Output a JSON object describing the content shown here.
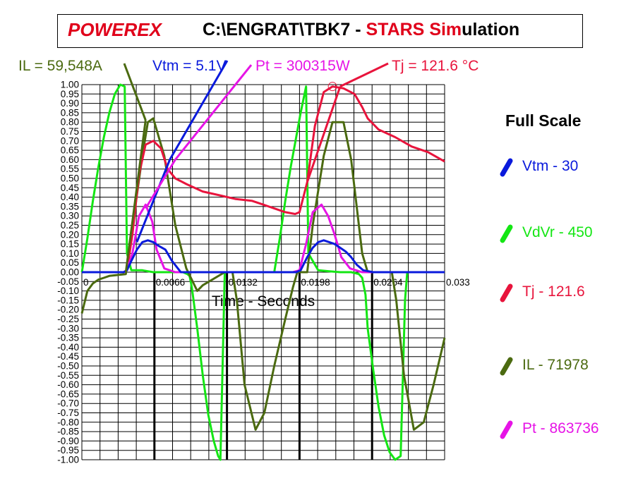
{
  "title": {
    "brand": "POWEREX",
    "path": "C:\\ENGRAT\\TBK7 - ",
    "sim_red1": "STARS",
    "sim_space": " ",
    "sim_red2": "Sim",
    "sim_black": "ulation"
  },
  "readouts": [
    {
      "text": "IL = 59,548A",
      "color": "#4b6a10"
    },
    {
      "text": "Vtm  = 5.1V",
      "color": "#0a1adc"
    },
    {
      "text": "Pt  = 300315W",
      "color": "#e614e6"
    },
    {
      "text": "Tj  = 121.6 °C",
      "color": "#e8143c"
    }
  ],
  "full_scale": {
    "heading": "Full Scale",
    "items": [
      {
        "label": "Vtm  - 30",
        "color": "#0a1adc"
      },
      {
        "label": "VdVr - 450",
        "color": "#14e614"
      },
      {
        "label": "Tj  - 121.6",
        "color": "#e8143c"
      },
      {
        "label": "IL  - 71978",
        "color": "#4b6a10"
      },
      {
        "label": "Pt  - 863736",
        "color": "#e614e6"
      }
    ]
  },
  "chart_data": {
    "type": "line",
    "xlabel": "Time - Seconds",
    "ylabel": "",
    "xlim": [
      0,
      0.033
    ],
    "ylim": [
      -1.0,
      1.0
    ],
    "x_tick_labels": [
      "0",
      "0.0066",
      "0.0132",
      "0.0198",
      "0.0264",
      "0.033"
    ],
    "x_tick_values": [
      0,
      0.0066,
      0.0132,
      0.0198,
      0.0264,
      0.033
    ],
    "y_tick_labels": [
      "1.00",
      "0.95",
      "0.90",
      "0.85",
      "0.80",
      "0.75",
      "0.70",
      "0.65",
      "0.60",
      "0.55",
      "0.50",
      "0.45",
      "0.40",
      "0.35",
      "0.30",
      "0.25",
      "0.20",
      "0.15",
      "0.10",
      "0.05",
      "0.00",
      "-0.05",
      "-0.10",
      "-0.15",
      "-0.20",
      "-0.25",
      "-0.30",
      "-0.35",
      "-0.40",
      "-0.45",
      "-0.50",
      "-0.55",
      "-0.60",
      "-0.65",
      "-0.70",
      "-0.75",
      "-0.80",
      "-0.85",
      "-0.90",
      "-0.95",
      "-1.00"
    ],
    "grid": true,
    "series": [
      {
        "name": "VdVr",
        "color": "#14e614",
        "x": [
          0,
          0.0005,
          0.001,
          0.0015,
          0.002,
          0.0025,
          0.003,
          0.0035,
          0.0039,
          0.0041,
          0.0045,
          0.005,
          0.0055,
          0.006,
          0.0065,
          0.007,
          0.0075,
          0.0085,
          0.0092,
          0.0096,
          0.0098,
          0.01,
          0.0105,
          0.011,
          0.0115,
          0.012,
          0.0124,
          0.0126,
          0.013,
          0.0136,
          0.0145,
          0.0155,
          0.0165,
          0.0175,
          0.018,
          0.0185,
          0.019,
          0.0195,
          0.0199,
          0.0204,
          0.0206,
          0.0215,
          0.0225,
          0.0235,
          0.0245,
          0.0252,
          0.0255,
          0.0258,
          0.026,
          0.0265,
          0.027,
          0.0275,
          0.028,
          0.0285,
          0.029,
          0.0294,
          0.0296,
          0.0305,
          0.033
        ],
        "y": [
          0,
          0.18,
          0.38,
          0.56,
          0.72,
          0.85,
          0.95,
          1.0,
          0.99,
          0.1,
          0.01,
          0.01,
          0.01,
          0.005,
          0.0,
          0.0,
          0.0,
          0.0,
          0.0,
          -0.01,
          -0.02,
          -0.08,
          -0.3,
          -0.55,
          -0.76,
          -0.9,
          -0.98,
          -1.0,
          0.0,
          0.0,
          0.0,
          0.0,
          0.0,
          0.0,
          0.18,
          0.38,
          0.56,
          0.72,
          0.85,
          0.99,
          0.1,
          0.01,
          0.005,
          0.0,
          0.0,
          -0.01,
          -0.03,
          -0.12,
          -0.3,
          -0.52,
          -0.72,
          -0.87,
          -0.96,
          -1.0,
          -0.98,
          -0.15,
          0.0,
          0.0,
          0.0
        ]
      },
      {
        "name": "IL",
        "color": "#4b6a10",
        "x": [
          0,
          0.0005,
          0.001,
          0.0015,
          0.002,
          0.0025,
          0.004,
          0.0045,
          0.0055,
          0.006,
          0.0065,
          0.0075,
          0.0085,
          0.0095,
          0.0105,
          0.011,
          0.013,
          0.0137,
          0.0141,
          0.0148,
          0.0158,
          0.0166,
          0.0175,
          0.0185,
          0.0192,
          0.0196,
          0.0205,
          0.021,
          0.022,
          0.0228,
          0.0238,
          0.0245,
          0.0255,
          0.026,
          0.0275,
          0.0282,
          0.0286,
          0.0293,
          0.0302,
          0.0311,
          0.032,
          0.033
        ],
        "y": [
          -0.22,
          -0.1,
          -0.06,
          -0.04,
          -0.03,
          -0.02,
          -0.01,
          0.2,
          0.62,
          0.8,
          0.82,
          0.62,
          0.25,
          0.02,
          -0.1,
          -0.07,
          0.0,
          0.0,
          -0.15,
          -0.6,
          -0.84,
          -0.75,
          -0.5,
          -0.25,
          -0.08,
          0.0,
          0.0,
          0.25,
          0.62,
          0.8,
          0.8,
          0.6,
          0.1,
          0.0,
          0.0,
          0.0,
          -0.15,
          -0.55,
          -0.84,
          -0.8,
          -0.6,
          -0.35
        ]
      },
      {
        "name": "Tj",
        "color": "#e8143c",
        "x": [
          0,
          0.0038,
          0.0041,
          0.0046,
          0.0052,
          0.0058,
          0.0065,
          0.0072,
          0.0078,
          0.0085,
          0.0095,
          0.011,
          0.0125,
          0.014,
          0.0155,
          0.0165,
          0.0175,
          0.0185,
          0.0194,
          0.0198,
          0.0205,
          0.0212,
          0.022,
          0.0228,
          0.0238,
          0.0248,
          0.0255,
          0.026,
          0.027,
          0.0285,
          0.03,
          0.0315,
          0.033
        ],
        "y": [
          0.0,
          0.0,
          0.01,
          0.2,
          0.52,
          0.68,
          0.7,
          0.66,
          0.55,
          0.5,
          0.47,
          0.43,
          0.41,
          0.39,
          0.38,
          0.36,
          0.34,
          0.32,
          0.31,
          0.32,
          0.48,
          0.78,
          0.96,
          0.99,
          0.98,
          0.95,
          0.88,
          0.82,
          0.76,
          0.72,
          0.67,
          0.64,
          0.59
        ]
      },
      {
        "name": "Pt",
        "color": "#e614e6",
        "x": [
          0,
          0.0038,
          0.0041,
          0.0046,
          0.0052,
          0.0058,
          0.0064,
          0.0068,
          0.0075,
          0.0085,
          0.0095,
          0.0105,
          0.0115,
          0.0125,
          0.014,
          0.016,
          0.018,
          0.0192,
          0.0198,
          0.0204,
          0.021,
          0.0218,
          0.0224,
          0.023,
          0.0236,
          0.0244,
          0.0255,
          0.027,
          0.03,
          0.033
        ],
        "y": [
          0.0,
          0.0,
          0.01,
          0.1,
          0.3,
          0.36,
          0.27,
          0.12,
          0.02,
          0.0,
          0.0,
          0.0,
          0.0,
          0.0,
          0.0,
          0.0,
          0.0,
          0.0,
          0.01,
          0.15,
          0.32,
          0.36,
          0.3,
          0.2,
          0.08,
          0.02,
          0.0,
          0.0,
          0.0,
          0.0
        ]
      },
      {
        "name": "Vtm",
        "color": "#0a1adc",
        "x": [
          0,
          0.0038,
          0.0041,
          0.0045,
          0.005,
          0.0055,
          0.006,
          0.0065,
          0.007,
          0.0076,
          0.0082,
          0.009,
          0.011,
          0.014,
          0.018,
          0.0195,
          0.0199,
          0.0205,
          0.021,
          0.0215,
          0.022,
          0.0225,
          0.023,
          0.0235,
          0.024,
          0.0245,
          0.025,
          0.0256,
          0.0265,
          0.033
        ],
        "y": [
          0.0,
          0.0,
          0.01,
          0.06,
          0.12,
          0.16,
          0.17,
          0.16,
          0.14,
          0.12,
          0.06,
          0.0,
          0.0,
          0.0,
          0.0,
          0.0,
          0.01,
          0.08,
          0.13,
          0.16,
          0.17,
          0.16,
          0.15,
          0.13,
          0.11,
          0.08,
          0.04,
          0.01,
          0.0,
          0.0
        ]
      }
    ],
    "ramp_lines": [
      {
        "series": "IL",
        "points": [
          [
            0.004,
            0.0
          ],
          [
            0.0058,
            0.81
          ]
        ]
      },
      {
        "series": "Vtm",
        "points": [
          [
            0.005,
            0.16
          ],
          [
            0.008,
            0.6
          ]
        ]
      },
      {
        "series": "Pt",
        "points": [
          [
            0.0058,
            0.34
          ],
          [
            0.0085,
            0.6
          ]
        ]
      },
      {
        "series": "Tj",
        "points": [
          [
            0.0205,
            0.48
          ],
          [
            0.0235,
            0.99
          ]
        ]
      }
    ],
    "cycle_markers_x": [
      0.0066,
      0.0132,
      0.0198,
      0.0264
    ]
  }
}
